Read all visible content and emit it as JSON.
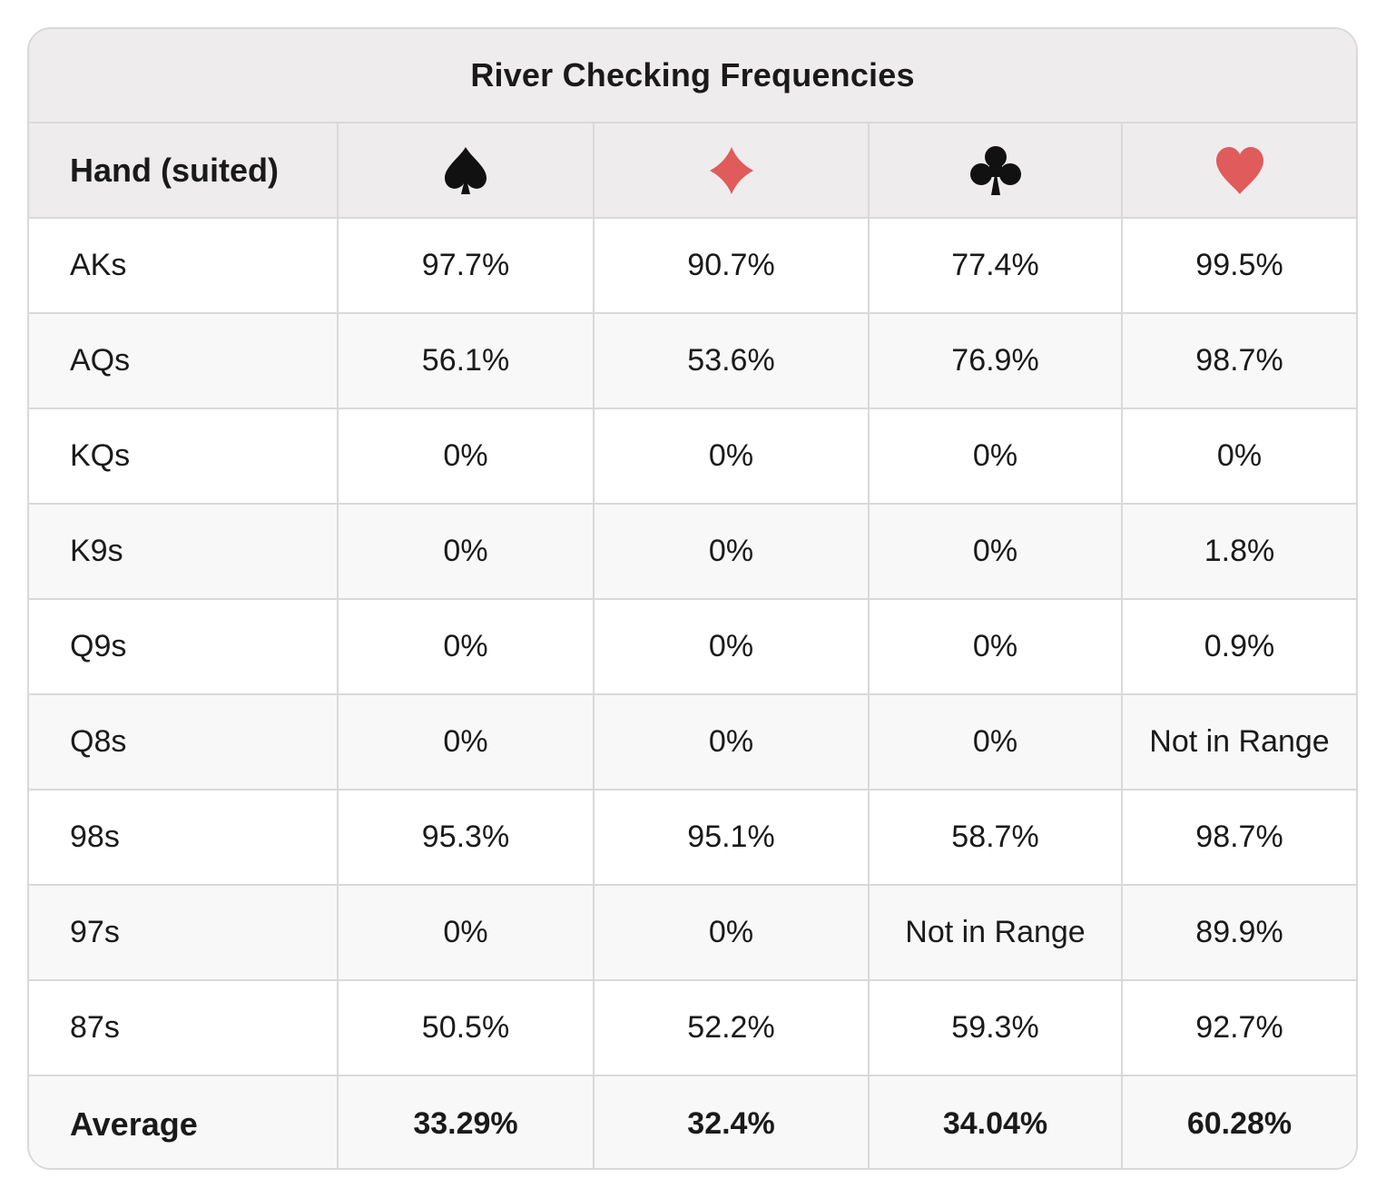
{
  "chart_data": {
    "type": "table",
    "title": "River Checking Frequencies",
    "columns": [
      "Hand (suited)",
      "spade",
      "diamond",
      "club",
      "heart"
    ],
    "suit_colors": {
      "spade": "#111111",
      "diamond": "#e05b5b",
      "club": "#111111",
      "heart": "#e05b5b"
    },
    "rows": [
      {
        "hand": "AKs",
        "values": [
          "97.7%",
          "90.7%",
          "77.4%",
          "99.5%"
        ]
      },
      {
        "hand": "AQs",
        "values": [
          "56.1%",
          "53.6%",
          "76.9%",
          "98.7%"
        ]
      },
      {
        "hand": "KQs",
        "values": [
          "0%",
          "0%",
          "0%",
          "0%"
        ]
      },
      {
        "hand": "K9s",
        "values": [
          "0%",
          "0%",
          "0%",
          "1.8%"
        ]
      },
      {
        "hand": "Q9s",
        "values": [
          "0%",
          "0%",
          "0%",
          "0.9%"
        ]
      },
      {
        "hand": "Q8s",
        "values": [
          "0%",
          "0%",
          "0%",
          "Not in Range"
        ]
      },
      {
        "hand": "98s",
        "values": [
          "95.3%",
          "95.1%",
          "58.7%",
          "98.7%"
        ]
      },
      {
        "hand": "97s",
        "values": [
          "0%",
          "0%",
          "Not in Range",
          "89.9%"
        ]
      },
      {
        "hand": "87s",
        "values": [
          "50.5%",
          "52.2%",
          "59.3%",
          "92.7%"
        ]
      }
    ],
    "average": {
      "label": "Average",
      "values": [
        "33.29%",
        "32.4%",
        "34.04%",
        "60.28%"
      ]
    }
  }
}
